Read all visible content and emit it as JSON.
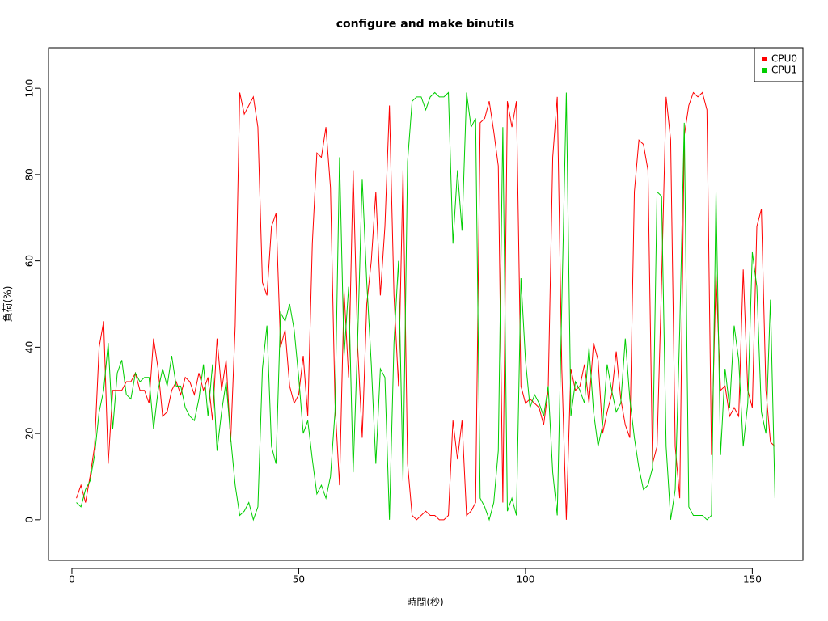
{
  "chart_data": {
    "type": "line",
    "title": "configure and make binutils",
    "x_label": "時間(秒)",
    "y_label": "負荷(%)",
    "x": [
      1,
      2,
      3,
      4,
      5,
      6,
      7,
      8,
      9,
      10,
      11,
      12,
      13,
      14,
      15,
      16,
      17,
      18,
      19,
      20,
      21,
      22,
      23,
      24,
      25,
      26,
      27,
      28,
      29,
      30,
      31,
      32,
      33,
      34,
      35,
      36,
      37,
      38,
      39,
      40,
      41,
      42,
      43,
      44,
      45,
      46,
      47,
      48,
      49,
      50,
      51,
      52,
      53,
      54,
      55,
      56,
      57,
      58,
      59,
      60,
      61,
      62,
      63,
      64,
      65,
      66,
      67,
      68,
      69,
      70,
      71,
      72,
      73,
      74,
      75,
      76,
      77,
      78,
      79,
      80,
      81,
      82,
      83,
      84,
      85,
      86,
      87,
      88,
      89,
      90,
      91,
      92,
      93,
      94,
      95,
      96,
      97,
      98,
      99,
      100,
      101,
      102,
      103,
      104,
      105,
      106,
      107,
      108,
      109,
      110,
      111,
      112,
      113,
      114,
      115,
      116,
      117,
      118,
      119,
      120,
      121,
      122,
      123,
      124,
      125,
      126,
      127,
      128,
      129,
      130,
      131,
      132,
      133,
      134,
      135,
      136,
      137,
      138,
      139,
      140,
      141,
      142,
      143,
      144,
      145,
      146,
      147,
      148,
      149,
      150,
      151,
      152,
      153,
      154,
      155
    ],
    "series": [
      {
        "name": "CPU0",
        "color": "#ff0000",
        "values": [
          5,
          8,
          4,
          10,
          17,
          40,
          46,
          13,
          30,
          30,
          30,
          32,
          32,
          34,
          30,
          30,
          27,
          42,
          35,
          24,
          25,
          30,
          32,
          29,
          33,
          32,
          29,
          34,
          30,
          33,
          23,
          42,
          30,
          37,
          18,
          45,
          99,
          94,
          96,
          98,
          91,
          55,
          52,
          68,
          71,
          40,
          44,
          31,
          27,
          29,
          38,
          24,
          64,
          85,
          84,
          91,
          77,
          27,
          8,
          53,
          33,
          81,
          40,
          19,
          50,
          60,
          76,
          52,
          68,
          96,
          52,
          31,
          81,
          13,
          1,
          0,
          1,
          2,
          1,
          1,
          0,
          0,
          1,
          23,
          14,
          23,
          1,
          2,
          4,
          92,
          93,
          97,
          90,
          82,
          4,
          97,
          91,
          97,
          31,
          27,
          28,
          27,
          26,
          22,
          30,
          84,
          98,
          35,
          0,
          35,
          30,
          31,
          36,
          27,
          41,
          37,
          20,
          25,
          29,
          39,
          28,
          22,
          19,
          76,
          88,
          87,
          81,
          13,
          17,
          55,
          98,
          88,
          17,
          5,
          89,
          96,
          99,
          98,
          99,
          95,
          15,
          57,
          30,
          31,
          24,
          26,
          24,
          58,
          30,
          26,
          68,
          72,
          30,
          18,
          17
        ]
      },
      {
        "name": "CPU1",
        "color": "#00cd00",
        "values": [
          4,
          3,
          7,
          9,
          15,
          25,
          30,
          41,
          21,
          34,
          37,
          29,
          28,
          34,
          32,
          33,
          33,
          21,
          30,
          35,
          31,
          38,
          31,
          31,
          26,
          24,
          23,
          28,
          36,
          24,
          36,
          16,
          25,
          32,
          19,
          8,
          1,
          2,
          4,
          0,
          3,
          35,
          45,
          17,
          13,
          48,
          46,
          50,
          44,
          33,
          20,
          23,
          14,
          6,
          8,
          5,
          10,
          25,
          84,
          38,
          54,
          11,
          42,
          79,
          55,
          36,
          13,
          35,
          33,
          0,
          41,
          60,
          9,
          83,
          97,
          98,
          98,
          95,
          98,
          99,
          98,
          98,
          99,
          64,
          81,
          67,
          99,
          91,
          93,
          5,
          3,
          0,
          4,
          16,
          91,
          2,
          5,
          1,
          56,
          37,
          26,
          29,
          27,
          24,
          31,
          11,
          1,
          50,
          99,
          24,
          32,
          30,
          27,
          40,
          25,
          17,
          22,
          36,
          30,
          25,
          27,
          42,
          28,
          19,
          12,
          7,
          8,
          12,
          76,
          75,
          17,
          0,
          7,
          44,
          92,
          3,
          1,
          1,
          1,
          0,
          1,
          76,
          15,
          35,
          26,
          45,
          37,
          17,
          27,
          62,
          54,
          25,
          20,
          51,
          5
        ]
      }
    ],
    "xlim": [
      -5.16,
      161.16
    ],
    "ylim": [
      -9.4,
      109.4
    ],
    "xticks": [
      0,
      50,
      100,
      150
    ],
    "yticks": [
      0,
      20,
      40,
      60,
      80,
      100
    ],
    "legend": "top-right"
  }
}
